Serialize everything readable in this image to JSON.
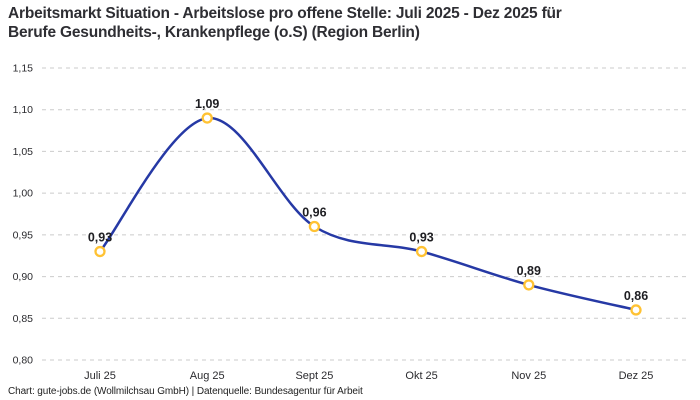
{
  "title": {
    "line1": "Arbeitsmarkt Situation - Arbeitslose pro offene Stelle: Juli 2025 - Dez 2025 für",
    "line2": "Berufe Gesundheits-, Krankenpflege (o.S) (Region Berlin)"
  },
  "footer": "Chart: gute-jobs.de (Wollmilchsau GmbH) | Datenquelle: Bundesagentur für Arbeit",
  "chart_data": {
    "type": "line",
    "title": "Arbeitsmarkt Situation - Arbeitslose pro offene Stelle: Juli 2025 - Dez 2025 für Berufe Gesundheits-, Krankenpflege (o.S) (Region Berlin)",
    "categories": [
      "Juli 25",
      "Aug 25",
      "Sept 25",
      "Okt 25",
      "Nov 25",
      "Dez 25"
    ],
    "values": [
      0.93,
      1.09,
      0.96,
      0.93,
      0.89,
      0.86
    ],
    "point_labels": [
      "0,93",
      "1,09",
      "0,96",
      "0,93",
      "0,89",
      "0,86"
    ],
    "ytick_labels": [
      "1,15",
      "1,10",
      "1,05",
      "1,00",
      "0,95",
      "0,90",
      "0,85",
      "0,80"
    ],
    "ytick_values": [
      1.15,
      1.1,
      1.05,
      1.0,
      0.95,
      0.9,
      0.85,
      0.8
    ],
    "ylim": [
      0.8,
      1.15
    ],
    "ytick_step": 0.05,
    "xlabel": "",
    "ylabel": "",
    "grid": "horizontal-dashed",
    "legend": "none",
    "curve": "smooth-spline",
    "colors": {
      "line": "#2639A5",
      "marker_stroke": "#FFC233",
      "marker_fill": "#FFFFFF",
      "grid": "#CBCBCB",
      "axis_text": "#2b2b2f",
      "data_label": "#1e1e22",
      "title_text": "#2e2e33"
    }
  }
}
